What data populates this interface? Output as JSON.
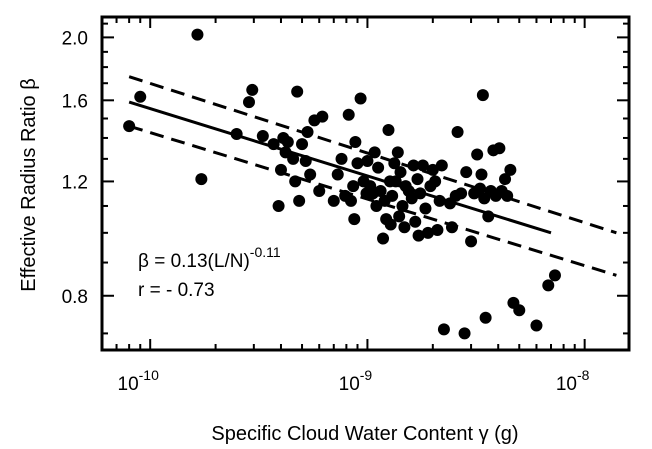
{
  "chart_data": {
    "type": "scatter",
    "xlabel": "Specific Cloud Water Content γ (g)",
    "ylabel": "Effective Radius Ratio β",
    "x_scale": "log",
    "y_scale": "log",
    "xlim": [
      6e-11,
      1.6e-08
    ],
    "ylim": [
      0.66,
      2.15
    ],
    "x_ticks": [
      {
        "value": 1e-10,
        "base": "10",
        "exp": "-10"
      },
      {
        "value": 1e-09,
        "base": "10",
        "exp": "-9"
      },
      {
        "value": 1e-08,
        "base": "10",
        "exp": "-8"
      }
    ],
    "y_ticks": [
      {
        "value": 0.8,
        "label": "0.8"
      },
      {
        "value": 1.2,
        "label": "1.2"
      },
      {
        "value": 1.6,
        "label": "1.6"
      },
      {
        "value": 2.0,
        "label": "2.0"
      }
    ],
    "annotations": {
      "equation_main": "β = 0.13(L/N)",
      "equation_exp": "-0.11",
      "correlation": "r = - 0.73"
    },
    "fit_line": {
      "x": [
        8e-11,
        7e-09
      ],
      "y": [
        1.59,
        1.0
      ]
    },
    "confidence_upper": {
      "x": [
        8e-11,
        1.4e-08
      ],
      "y": [
        1.74,
        1.0
      ]
    },
    "confidence_lower": {
      "x": [
        8e-11,
        1.4e-08
      ],
      "y": [
        1.46,
        0.86
      ]
    },
    "points": [
      [
        8e-11,
        1.46
      ],
      [
        9e-11,
        1.62
      ],
      [
        1.65e-10,
        2.02
      ],
      [
        1.72e-10,
        1.21
      ],
      [
        2.5e-10,
        1.42
      ],
      [
        2.85e-10,
        1.59
      ],
      [
        2.95e-10,
        1.66
      ],
      [
        3.3e-10,
        1.41
      ],
      [
        3.7e-10,
        1.37
      ],
      [
        3.9e-10,
        1.1
      ],
      [
        4e-10,
        1.25
      ],
      [
        4.1e-10,
        1.4
      ],
      [
        4.2e-10,
        1.33
      ],
      [
        4.3e-10,
        1.38
      ],
      [
        4.55e-10,
        1.3
      ],
      [
        4.65e-10,
        1.2
      ],
      [
        4.75e-10,
        1.65
      ],
      [
        4.85e-10,
        1.12
      ],
      [
        5e-10,
        1.37
      ],
      [
        5.2e-10,
        1.29
      ],
      [
        5.3e-10,
        1.43
      ],
      [
        5.45e-10,
        1.23
      ],
      [
        5.7e-10,
        1.49
      ],
      [
        6e-10,
        1.16
      ],
      [
        6.2e-10,
        1.51
      ],
      [
        7e-10,
        1.12
      ],
      [
        7.3e-10,
        1.23
      ],
      [
        7.6e-10,
        1.3
      ],
      [
        7.9e-10,
        1.14
      ],
      [
        8.2e-10,
        1.52
      ],
      [
        8.4e-10,
        1.12
      ],
      [
        8.6e-10,
        1.18
      ],
      [
        8.7e-10,
        1.05
      ],
      [
        8.8e-10,
        1.38
      ],
      [
        9e-10,
        1.28
      ],
      [
        9.3e-10,
        1.61
      ],
      [
        9.6e-10,
        1.2
      ],
      [
        9.9e-10,
        1.15
      ],
      [
        1e-09,
        1.29
      ],
      [
        1.03e-09,
        1.18
      ],
      [
        1.06e-09,
        1.15
      ],
      [
        1.08e-09,
        1.33
      ],
      [
        1.1e-09,
        1.1
      ],
      [
        1.12e-09,
        1.26
      ],
      [
        1.15e-09,
        1.16
      ],
      [
        1.18e-09,
        0.98
      ],
      [
        1.2e-09,
        1.12
      ],
      [
        1.22e-09,
        1.05
      ],
      [
        1.25e-09,
        1.44
      ],
      [
        1.27e-09,
        1.2
      ],
      [
        1.28e-09,
        1.03
      ],
      [
        1.3e-09,
        1.14
      ],
      [
        1.33e-09,
        1.28
      ],
      [
        1.35e-09,
        1.2
      ],
      [
        1.38e-09,
        1.33
      ],
      [
        1.4e-09,
        1.06
      ],
      [
        1.42e-09,
        1.24
      ],
      [
        1.45e-09,
        1.1
      ],
      [
        1.48e-09,
        1.02
      ],
      [
        1.5e-09,
        1.18
      ],
      [
        1.55e-09,
        1.16
      ],
      [
        1.6e-09,
        1.13
      ],
      [
        1.63e-09,
        1.27
      ],
      [
        1.66e-09,
        1.04
      ],
      [
        1.7e-09,
        1.21
      ],
      [
        1.72e-09,
        0.99
      ],
      [
        1.75e-09,
        1.15
      ],
      [
        1.8e-09,
        1.27
      ],
      [
        1.85e-09,
        1.09
      ],
      [
        1.9e-09,
        1.0
      ],
      [
        1.95e-09,
        1.18
      ],
      [
        2e-09,
        1.25
      ],
      [
        2.05e-09,
        1.2
      ],
      [
        2.1e-09,
        1.01
      ],
      [
        2.15e-09,
        1.12
      ],
      [
        2.2e-09,
        1.27
      ],
      [
        2.25e-09,
        0.71
      ],
      [
        2.4e-09,
        1.11
      ],
      [
        2.45e-09,
        1.02
      ],
      [
        2.55e-09,
        1.14
      ],
      [
        2.6e-09,
        1.43
      ],
      [
        2.7e-09,
        1.15
      ],
      [
        2.8e-09,
        0.7
      ],
      [
        2.85e-09,
        1.24
      ],
      [
        3e-09,
        0.97
      ],
      [
        3.1e-09,
        1.15
      ],
      [
        3.2e-09,
        1.32
      ],
      [
        3.3e-09,
        1.17
      ],
      [
        3.35e-09,
        1.23
      ],
      [
        3.4e-09,
        1.63
      ],
      [
        3.45e-09,
        1.13
      ],
      [
        3.5e-09,
        0.74
      ],
      [
        3.6e-09,
        1.06
      ],
      [
        3.7e-09,
        1.16
      ],
      [
        3.8e-09,
        1.34
      ],
      [
        3.9e-09,
        1.14
      ],
      [
        4.05e-09,
        1.35
      ],
      [
        4.15e-09,
        1.16
      ],
      [
        4.3e-09,
        1.21
      ],
      [
        4.4e-09,
        1.14
      ],
      [
        4.55e-09,
        1.25
      ],
      [
        4.7e-09,
        0.78
      ],
      [
        5e-09,
        0.76
      ],
      [
        6e-09,
        0.72
      ],
      [
        6.8e-09,
        0.83
      ],
      [
        7.3e-09,
        0.86
      ]
    ]
  }
}
